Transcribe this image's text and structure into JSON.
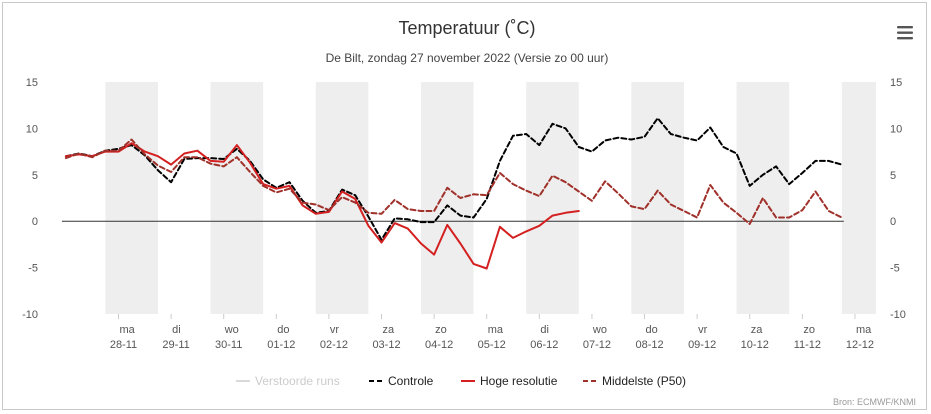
{
  "menu_icon": "hamburger-menu-icon",
  "credit": "Bron: ECMWF/KNMI",
  "colors": {
    "controle": "#000000",
    "hoge_resolutie": "#d42020",
    "middelste": "#a0302a",
    "verstoorde": "#d9d9d9",
    "band": "#eeeeee",
    "zero_line": "#333333"
  },
  "chart_data": {
    "type": "line",
    "title": "Temperatuur (˚C)",
    "subtitle": "De Bilt, zondag 27 november 2022 (Versie zo 00 uur)",
    "xlabel": "",
    "ylabel": "",
    "ylim": [
      -10,
      15
    ],
    "yticks": [
      -10,
      -5,
      0,
      5,
      10,
      15
    ],
    "x_unit": "days since 2022-11-27 00:00",
    "xlim": [
      -0.15,
      15.4
    ],
    "shaded_days": [
      [
        0.75,
        1.75
      ],
      [
        2.75,
        3.75
      ],
      [
        4.75,
        5.75
      ],
      [
        6.75,
        7.75
      ],
      [
        8.75,
        9.75
      ],
      [
        10.75,
        11.75
      ],
      [
        12.75,
        13.75
      ],
      [
        14.75,
        15.4
      ]
    ],
    "x_ticks": [
      {
        "x": 1,
        "day": "ma",
        "date": "28-11"
      },
      {
        "x": 2,
        "day": "di",
        "date": "29-11"
      },
      {
        "x": 3,
        "day": "wo",
        "date": "30-11"
      },
      {
        "x": 4,
        "day": "do",
        "date": "01-12"
      },
      {
        "x": 5,
        "day": "vr",
        "date": "02-12"
      },
      {
        "x": 6,
        "day": "za",
        "date": "03-12"
      },
      {
        "x": 7,
        "day": "zo",
        "date": "04-12"
      },
      {
        "x": 8,
        "day": "ma",
        "date": "05-12"
      },
      {
        "x": 9,
        "day": "di",
        "date": "06-12"
      },
      {
        "x": 10,
        "day": "wo",
        "date": "07-12"
      },
      {
        "x": 11,
        "day": "do",
        "date": "08-12"
      },
      {
        "x": 12,
        "day": "vr",
        "date": "09-12"
      },
      {
        "x": 13,
        "day": "za",
        "date": "10-12"
      },
      {
        "x": 14,
        "day": "zo",
        "date": "11-12"
      },
      {
        "x": 15,
        "day": "ma",
        "date": "12-12"
      }
    ],
    "legend": [
      {
        "key": "verstoorde",
        "label": "Verstoorde runs",
        "style": "solid",
        "disabled": true
      },
      {
        "key": "controle",
        "label": "Controle",
        "style": "dash",
        "disabled": false
      },
      {
        "key": "hoge_resolutie",
        "label": "Hoge resolutie",
        "style": "solid",
        "disabled": false
      },
      {
        "key": "middelste",
        "label": "Middelste (P50)",
        "style": "dash",
        "disabled": false
      }
    ],
    "series": [
      {
        "name": "Controle",
        "key": "controle",
        "dash": "5,3",
        "width": 2,
        "points": [
          [
            0.0,
            7.0
          ],
          [
            0.25,
            7.3
          ],
          [
            0.5,
            7.0
          ],
          [
            0.75,
            7.6
          ],
          [
            1.0,
            7.8
          ],
          [
            1.25,
            8.2
          ],
          [
            1.5,
            7.1
          ],
          [
            1.75,
            5.5
          ],
          [
            2.0,
            4.2
          ],
          [
            2.25,
            6.7
          ],
          [
            2.5,
            6.8
          ],
          [
            2.75,
            6.8
          ],
          [
            3.0,
            6.7
          ],
          [
            3.25,
            7.8
          ],
          [
            3.5,
            6.5
          ],
          [
            3.75,
            4.5
          ],
          [
            4.0,
            3.6
          ],
          [
            4.25,
            4.2
          ],
          [
            4.5,
            2.2
          ],
          [
            4.75,
            0.9
          ],
          [
            5.0,
            1.1
          ],
          [
            5.25,
            3.4
          ],
          [
            5.5,
            2.8
          ],
          [
            5.75,
            0.5
          ],
          [
            6.0,
            -2.0
          ],
          [
            6.25,
            0.3
          ],
          [
            6.5,
            0.2
          ],
          [
            6.75,
            -0.1
          ],
          [
            7.0,
            -0.1
          ],
          [
            7.25,
            1.7
          ],
          [
            7.5,
            0.6
          ],
          [
            7.75,
            0.4
          ],
          [
            8.0,
            2.4
          ],
          [
            8.25,
            6.5
          ],
          [
            8.5,
            9.2
          ],
          [
            8.75,
            9.4
          ],
          [
            9.0,
            8.2
          ],
          [
            9.25,
            10.5
          ],
          [
            9.5,
            10.0
          ],
          [
            9.75,
            8.0
          ],
          [
            10.0,
            7.5
          ],
          [
            10.25,
            8.7
          ],
          [
            10.5,
            9.0
          ],
          [
            10.75,
            8.8
          ],
          [
            11.0,
            9.1
          ],
          [
            11.25,
            11.1
          ],
          [
            11.5,
            9.4
          ],
          [
            11.75,
            9.0
          ],
          [
            12.0,
            8.7
          ],
          [
            12.25,
            10.1
          ],
          [
            12.5,
            8.0
          ],
          [
            12.75,
            7.3
          ],
          [
            13.0,
            3.8
          ],
          [
            13.25,
            5.0
          ],
          [
            13.5,
            5.9
          ],
          [
            13.75,
            4.0
          ],
          [
            14.0,
            5.2
          ],
          [
            14.25,
            6.5
          ],
          [
            14.5,
            6.5
          ],
          [
            14.75,
            6.1
          ]
        ]
      },
      {
        "name": "Hoge resolutie",
        "key": "hoge_resolutie",
        "dash": "",
        "width": 2,
        "points": [
          [
            0.0,
            7.0
          ],
          [
            0.25,
            7.2
          ],
          [
            0.5,
            7.0
          ],
          [
            0.75,
            7.5
          ],
          [
            1.0,
            7.5
          ],
          [
            1.25,
            8.4
          ],
          [
            1.5,
            7.5
          ],
          [
            1.75,
            7.0
          ],
          [
            2.0,
            6.1
          ],
          [
            2.25,
            7.3
          ],
          [
            2.5,
            7.6
          ],
          [
            2.75,
            6.5
          ],
          [
            3.0,
            6.4
          ],
          [
            3.25,
            8.2
          ],
          [
            3.5,
            6.3
          ],
          [
            3.75,
            4.0
          ],
          [
            4.0,
            3.5
          ],
          [
            4.25,
            3.8
          ],
          [
            4.5,
            1.7
          ],
          [
            4.75,
            0.8
          ],
          [
            5.0,
            1.0
          ],
          [
            5.25,
            3.2
          ],
          [
            5.5,
            2.4
          ],
          [
            5.75,
            -0.5
          ],
          [
            6.0,
            -2.3
          ],
          [
            6.25,
            -0.2
          ],
          [
            6.5,
            -0.8
          ],
          [
            6.75,
            -2.4
          ],
          [
            7.0,
            -3.6
          ],
          [
            7.25,
            -0.4
          ],
          [
            7.5,
            -2.4
          ],
          [
            7.75,
            -4.6
          ],
          [
            8.0,
            -5.1
          ],
          [
            8.25,
            -0.6
          ],
          [
            8.5,
            -1.8
          ],
          [
            8.75,
            -1.1
          ],
          [
            9.0,
            -0.5
          ],
          [
            9.25,
            0.6
          ],
          [
            9.5,
            0.9
          ],
          [
            9.75,
            1.1
          ]
        ]
      },
      {
        "name": "Middelste (P50)",
        "key": "middelste",
        "dash": "5,3",
        "width": 2,
        "points": [
          [
            0.0,
            6.8
          ],
          [
            0.25,
            7.3
          ],
          [
            0.5,
            6.9
          ],
          [
            0.75,
            7.6
          ],
          [
            1.0,
            7.6
          ],
          [
            1.25,
            8.8
          ],
          [
            1.5,
            7.2
          ],
          [
            1.75,
            6.0
          ],
          [
            2.0,
            5.3
          ],
          [
            2.25,
            6.9
          ],
          [
            2.5,
            6.9
          ],
          [
            2.75,
            6.2
          ],
          [
            3.0,
            5.9
          ],
          [
            3.25,
            6.9
          ],
          [
            3.5,
            5.3
          ],
          [
            3.75,
            3.8
          ],
          [
            4.0,
            3.1
          ],
          [
            4.25,
            3.5
          ],
          [
            4.5,
            2.0
          ],
          [
            4.75,
            1.8
          ],
          [
            5.0,
            1.2
          ],
          [
            5.25,
            2.6
          ],
          [
            5.5,
            2.0
          ],
          [
            5.75,
            0.9
          ],
          [
            6.0,
            0.8
          ],
          [
            6.25,
            2.3
          ],
          [
            6.5,
            1.3
          ],
          [
            6.75,
            1.1
          ],
          [
            7.0,
            1.1
          ],
          [
            7.25,
            3.6
          ],
          [
            7.5,
            2.5
          ],
          [
            7.75,
            2.9
          ],
          [
            8.0,
            2.8
          ],
          [
            8.25,
            5.2
          ],
          [
            8.5,
            4.0
          ],
          [
            8.75,
            3.3
          ],
          [
            9.0,
            2.7
          ],
          [
            9.25,
            4.9
          ],
          [
            9.5,
            4.2
          ],
          [
            9.75,
            3.2
          ],
          [
            10.0,
            2.2
          ],
          [
            10.25,
            4.3
          ],
          [
            10.5,
            3.0
          ],
          [
            10.75,
            1.6
          ],
          [
            11.0,
            1.3
          ],
          [
            11.25,
            3.3
          ],
          [
            11.5,
            1.8
          ],
          [
            11.75,
            1.1
          ],
          [
            12.0,
            0.4
          ],
          [
            12.25,
            3.9
          ],
          [
            12.5,
            2.0
          ],
          [
            12.75,
            0.9
          ],
          [
            13.0,
            -0.3
          ],
          [
            13.25,
            2.5
          ],
          [
            13.5,
            0.4
          ],
          [
            13.75,
            0.4
          ],
          [
            14.0,
            1.2
          ],
          [
            14.25,
            3.2
          ],
          [
            14.5,
            1.1
          ],
          [
            14.75,
            0.4
          ]
        ]
      }
    ]
  }
}
